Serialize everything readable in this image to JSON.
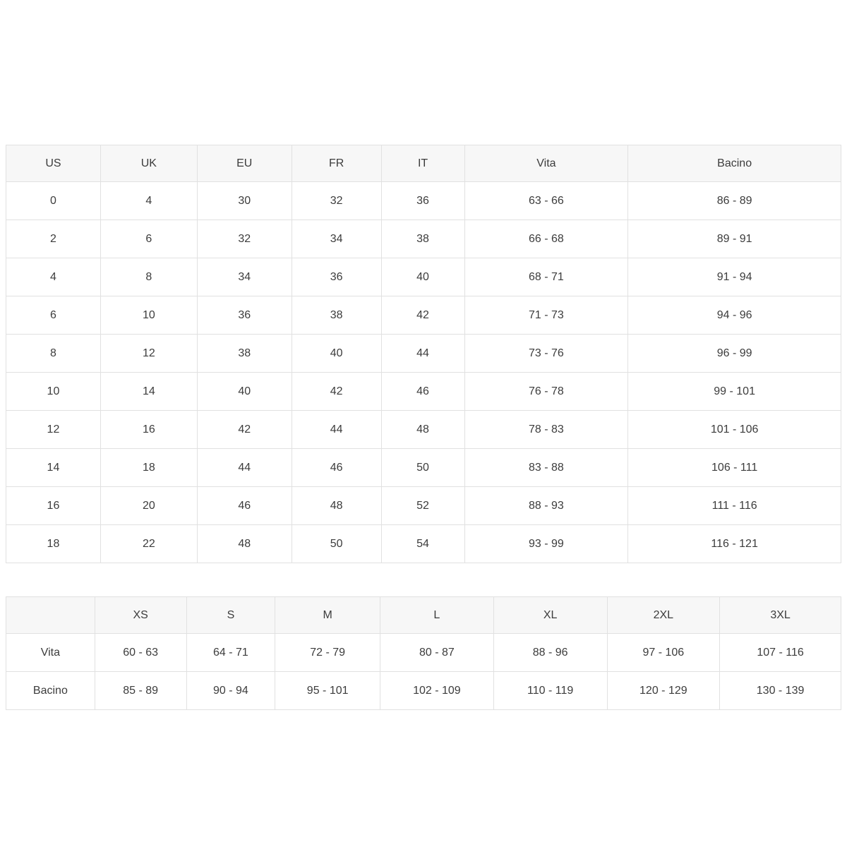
{
  "colors": {
    "page_background": "#ffffff",
    "header_background": "#f7f7f7",
    "border": "#e1e1e1",
    "text": "#3c3c3c"
  },
  "tables": [
    {
      "name": "size-conversion-table",
      "headers": [
        "US",
        "UK",
        "EU",
        "FR",
        "IT",
        "Vita",
        "Bacino"
      ],
      "rows": [
        [
          "0",
          "4",
          "30",
          "32",
          "36",
          "63 - 66",
          "86 - 89"
        ],
        [
          "2",
          "6",
          "32",
          "34",
          "38",
          "66 - 68",
          "89 - 91"
        ],
        [
          "4",
          "8",
          "34",
          "36",
          "40",
          "68 - 71",
          "91 - 94"
        ],
        [
          "6",
          "10",
          "36",
          "38",
          "42",
          "71 - 73",
          "94 - 96"
        ],
        [
          "8",
          "12",
          "38",
          "40",
          "44",
          "73 - 76",
          "96 - 99"
        ],
        [
          "10",
          "14",
          "40",
          "42",
          "46",
          "76 - 78",
          "99 - 101"
        ],
        [
          "12",
          "16",
          "42",
          "44",
          "48",
          "78 - 83",
          "101 - 106"
        ],
        [
          "14",
          "18",
          "44",
          "46",
          "50",
          "83 - 88",
          "106 - 111"
        ],
        [
          "16",
          "20",
          "46",
          "48",
          "52",
          "88 - 93",
          "111 - 116"
        ],
        [
          "18",
          "22",
          "48",
          "50",
          "54",
          "93 - 99",
          "116 - 121"
        ]
      ]
    },
    {
      "name": "letter-size-measurements-table",
      "headers": [
        "",
        "XS",
        "S",
        "M",
        "L",
        "XL",
        "2XL",
        "3XL"
      ],
      "rows": [
        [
          "Vita",
          "60 - 63",
          "64 - 71",
          "72 - 79",
          "80 - 87",
          "88 - 96",
          "97 - 106",
          "107 - 116"
        ],
        [
          "Bacino",
          "85 - 89",
          "90 - 94",
          "95 - 101",
          "102 - 109",
          "110 - 119",
          "120 - 129",
          "130 - 139"
        ]
      ]
    }
  ]
}
